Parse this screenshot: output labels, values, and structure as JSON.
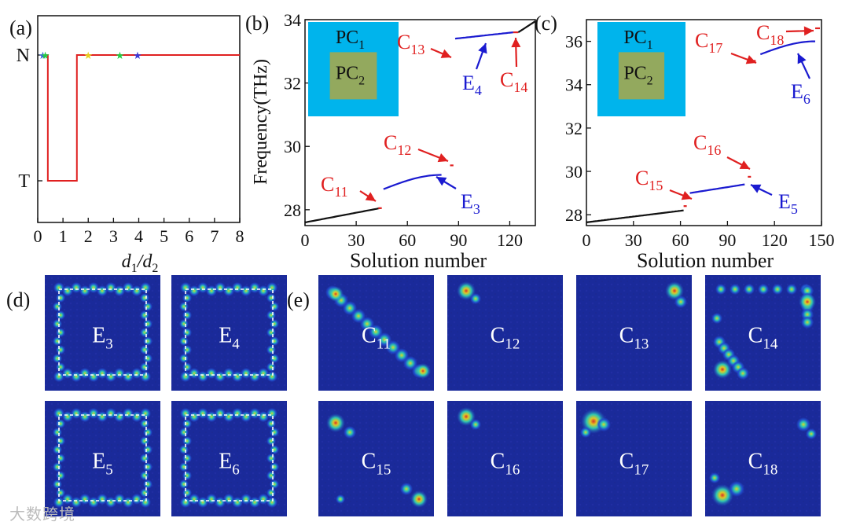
{
  "panel_labels": [
    "(a)",
    "(b)",
    "(c)",
    "(d)",
    "(e)"
  ],
  "watermark": "大数跨境",
  "chart_data": [
    {
      "id": "a",
      "type": "line",
      "xlabel_main": "d",
      "xlabel_sub1": "1",
      "xlabel_slash": "/",
      "xlabel_sub2": "2",
      "xlim": [
        0,
        8
      ],
      "xticks": [
        "0",
        "1",
        "2",
        "3",
        "4",
        "5",
        "6",
        "7",
        "8"
      ],
      "ytick_labels": [
        "N",
        "T"
      ],
      "series": [
        {
          "name": "phase",
          "color": "#e02020",
          "x": [
            0.3,
            0.4,
            0.4,
            1.55,
            1.55,
            8
          ],
          "y": [
            1,
            1,
            0,
            0,
            1,
            1
          ]
        }
      ],
      "markers": [
        {
          "x": 0.2,
          "color": "#3a6bd8"
        },
        {
          "x": 0.3,
          "color": "#22cc44"
        },
        {
          "x": 2.0,
          "color": "#e8d020"
        },
        {
          "x": 3.25,
          "color": "#22cc44"
        },
        {
          "x": 3.95,
          "color": "#3a3ad8"
        }
      ]
    },
    {
      "id": "b",
      "type": "scatter",
      "xlabel": "Solution number",
      "ylabel": "Frequency(THz)",
      "xlim": [
        0,
        135
      ],
      "ylim": [
        27.5,
        34.0
      ],
      "xticks": [
        0,
        30,
        60,
        90,
        120
      ],
      "yticks": [
        28,
        30,
        32,
        34
      ],
      "inset": {
        "outer": "PC",
        "outer_sub": "1",
        "inner": "PC",
        "inner_sub": "2"
      },
      "segments": [
        {
          "name": "bulk-lower",
          "color": "#111111",
          "x0": 0,
          "x1": 44,
          "y0": 27.6,
          "y1": 28.05,
          "curve": "linear"
        },
        {
          "name": "C11",
          "color": "#e02020",
          "x0": 43,
          "x1": 45,
          "y0": 28.05,
          "y1": 28.05,
          "curve": "linear"
        },
        {
          "name": "E3",
          "color": "#1a1ad0",
          "x0": 46,
          "x1": 80,
          "y0": 28.65,
          "y1": 29.1,
          "curve": "sine"
        },
        {
          "name": "C12",
          "color": "#e02020",
          "x0": 85,
          "x1": 87,
          "y0": 29.4,
          "y1": 29.4,
          "curve": "linear"
        },
        {
          "name": "C13",
          "color": "#e02020",
          "x0": 82,
          "x1": 84,
          "y0": 32.85,
          "y1": 32.85,
          "curve": "linear"
        },
        {
          "name": "E4",
          "color": "#1a1ad0",
          "x0": 88,
          "x1": 122,
          "y0": 33.4,
          "y1": 33.6,
          "curve": "linear"
        },
        {
          "name": "C14",
          "color": "#e02020",
          "x0": 122,
          "x1": 125,
          "y0": 33.6,
          "y1": 33.6,
          "curve": "linear"
        },
        {
          "name": "bulk-upper",
          "color": "#111111",
          "x0": 125,
          "x1": 135,
          "y0": 33.6,
          "y1": 33.95,
          "curve": "linear"
        }
      ],
      "annotations": [
        {
          "label": "C",
          "sub": "11",
          "color": "#e02020"
        },
        {
          "label": "C",
          "sub": "12",
          "color": "#e02020"
        },
        {
          "label": "C",
          "sub": "13",
          "color": "#e02020"
        },
        {
          "label": "C",
          "sub": "14",
          "color": "#e02020"
        },
        {
          "label": "E",
          "sub": "3",
          "color": "#1a1ad0"
        },
        {
          "label": "E",
          "sub": "4",
          "color": "#1a1ad0"
        }
      ]
    },
    {
      "id": "c",
      "type": "scatter",
      "xlabel": "Solution number",
      "ylabel": "",
      "xlim": [
        0,
        150
      ],
      "ylim": [
        27.5,
        37.0
      ],
      "xticks": [
        0,
        30,
        60,
        90,
        120,
        150
      ],
      "yticks": [
        28,
        30,
        32,
        34,
        36
      ],
      "inset": {
        "outer": "PC",
        "outer_sub": "1",
        "inner": "PC",
        "inner_sub": "2"
      },
      "segments": [
        {
          "name": "bulk-lower",
          "color": "#111111",
          "x0": 0,
          "x1": 62,
          "y0": 27.65,
          "y1": 28.2,
          "curve": "linear"
        },
        {
          "name": "C15",
          "color": "#e02020",
          "x0": 62,
          "x1": 64,
          "y0": 28.4,
          "y1": 28.4,
          "curve": "linear"
        },
        {
          "name": "E5",
          "color": "#1a1ad0",
          "x0": 66,
          "x1": 101,
          "y0": 29.0,
          "y1": 29.4,
          "curve": "linear"
        },
        {
          "name": "C16",
          "color": "#e02020",
          "x0": 103,
          "x1": 105,
          "y0": 29.75,
          "y1": 29.75,
          "curve": "linear"
        },
        {
          "name": "C17",
          "color": "#e02020",
          "x0": 106,
          "x1": 108,
          "y0": 35.1,
          "y1": 35.1,
          "curve": "linear"
        },
        {
          "name": "E6",
          "color": "#1a1ad0",
          "x0": 111,
          "x1": 146,
          "y0": 35.4,
          "y1": 36.0,
          "curve": "sine"
        },
        {
          "name": "C18",
          "color": "#e02020",
          "x0": 146,
          "x1": 149,
          "y0": 36.6,
          "y1": 36.6,
          "curve": "linear"
        }
      ],
      "annotations": [
        {
          "label": "C",
          "sub": "15",
          "color": "#e02020"
        },
        {
          "label": "C",
          "sub": "16",
          "color": "#e02020"
        },
        {
          "label": "C",
          "sub": "17",
          "color": "#e02020"
        },
        {
          "label": "C",
          "sub": "18",
          "color": "#e02020"
        },
        {
          "label": "E",
          "sub": "5",
          "color": "#1a1ad0"
        },
        {
          "label": "E",
          "sub": "6",
          "color": "#1a1ad0"
        }
      ]
    },
    {
      "id": "d",
      "type": "heatmap",
      "colormap": [
        "#1a1a8a",
        "#2040c8",
        "#20c8c0",
        "#d8e020",
        "#e03020"
      ],
      "maps": [
        {
          "label": "E",
          "sub": "3",
          "pattern": "ring"
        },
        {
          "label": "E",
          "sub": "4",
          "pattern": "ring"
        },
        {
          "label": "E",
          "sub": "5",
          "pattern": "ring"
        },
        {
          "label": "E",
          "sub": "6",
          "pattern": "ring"
        }
      ]
    },
    {
      "id": "e",
      "type": "heatmap",
      "maps": [
        {
          "label": "C",
          "sub": "11",
          "pattern": "diag-tl-br"
        },
        {
          "label": "C",
          "sub": "12",
          "pattern": "corner-tl"
        },
        {
          "label": "C",
          "sub": "13",
          "pattern": "corner-tr"
        },
        {
          "label": "C",
          "sub": "14",
          "pattern": "l-shape"
        },
        {
          "label": "C",
          "sub": "15",
          "pattern": "diag-tl-br-faint"
        },
        {
          "label": "C",
          "sub": "16",
          "pattern": "corner-tl"
        },
        {
          "label": "C",
          "sub": "17",
          "pattern": "corner-tl-strong"
        },
        {
          "label": "C",
          "sub": "18",
          "pattern": "diag-tr-bl"
        }
      ]
    }
  ]
}
